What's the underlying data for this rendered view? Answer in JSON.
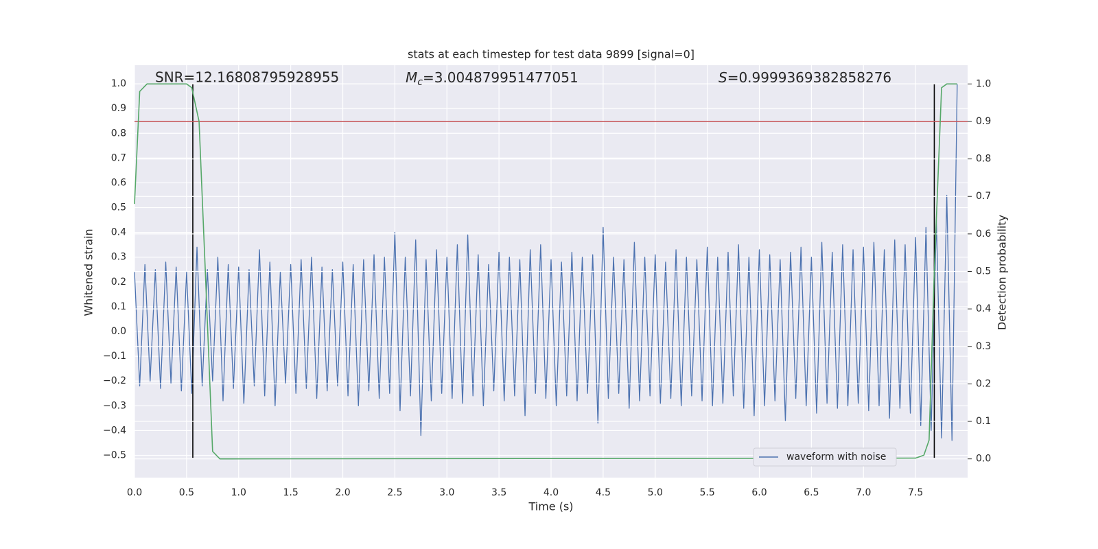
{
  "chart_data": {
    "type": "line",
    "title": "stats at each timestep for test data 9899 [signal=0]",
    "x_label": "Time (s)",
    "y_label": "Whitened strain",
    "y2_label": "Detection probability",
    "annotations": {
      "snr": "SNR=12.16808795928955",
      "mc_symbol": "M",
      "mc_subscript": "c",
      "mc_text": "=3.004879951477051",
      "s_symbol": "S",
      "s_text": "=0.9999369382858276"
    },
    "xlim": [
      0,
      8.0
    ],
    "ylim": [
      -0.59,
      1.075
    ],
    "y2lim": [
      -0.05,
      1.05
    ],
    "xticks": [
      {
        "value": 0,
        "label": "0.0"
      },
      0.5,
      {
        "value": 1,
        "label": "1.0"
      },
      1.5,
      {
        "value": 2,
        "label": "2.0"
      },
      2.5,
      {
        "value": 3,
        "label": "3.0"
      },
      3.5,
      {
        "value": 4,
        "label": "4.0"
      },
      4.5,
      {
        "value": 5,
        "label": "5.0"
      },
      5.5,
      {
        "value": 6,
        "label": "6.0"
      },
      6.5,
      {
        "value": 7,
        "label": "7.0"
      },
      7.5
    ],
    "yticks": [
      {
        "value": -0.5,
        "label": "−0.5"
      },
      {
        "value": -0.4,
        "label": "−0.4"
      },
      {
        "value": -0.3,
        "label": "−0.3"
      },
      {
        "value": -0.2,
        "label": "−0.2"
      },
      {
        "value": -0.1,
        "label": "−0.1"
      },
      {
        "value": 0,
        "label": "0.0"
      },
      0.1,
      0.2,
      0.3,
      0.4,
      0.5,
      0.6,
      0.7,
      0.8,
      0.9,
      {
        "value": 1,
        "label": "1.0"
      }
    ],
    "y2ticks": [
      {
        "value": 0,
        "label": "0.0"
      },
      0.1,
      0.2,
      0.3,
      0.4,
      0.5,
      0.6,
      0.7,
      0.8,
      0.9,
      {
        "value": 1,
        "label": "1.0"
      }
    ],
    "grid": true,
    "legend": "lower right",
    "x": [
      0,
      0.05,
      0.1,
      0.15,
      0.2,
      0.25,
      0.3,
      0.35,
      0.4,
      0.45,
      0.5,
      0.55,
      0.6,
      0.65,
      0.7,
      0.75,
      0.8,
      0.85,
      0.9,
      0.95,
      1.0,
      1.05,
      1.1,
      1.15,
      1.2,
      1.25,
      1.3,
      1.35,
      1.4,
      1.45,
      1.5,
      1.55,
      1.6,
      1.65,
      1.7,
      1.75,
      1.8,
      1.85,
      1.9,
      1.95,
      2.0,
      2.05,
      2.1,
      2.15,
      2.2,
      2.25,
      2.3,
      2.35,
      2.4,
      2.45,
      2.5,
      2.55,
      2.6,
      2.65,
      2.7,
      2.75,
      2.8,
      2.85,
      2.9,
      2.95,
      3.0,
      3.05,
      3.1,
      3.15,
      3.2,
      3.25,
      3.3,
      3.35,
      3.4,
      3.45,
      3.5,
      3.55,
      3.6,
      3.65,
      3.7,
      3.75,
      3.8,
      3.85,
      3.9,
      3.95,
      4.0,
      4.05,
      4.1,
      4.15,
      4.2,
      4.25,
      4.3,
      4.35,
      4.4,
      4.45,
      4.5,
      4.55,
      4.6,
      4.65,
      4.7,
      4.75,
      4.8,
      4.85,
      4.9,
      4.95,
      5.0,
      5.05,
      5.1,
      5.15,
      5.2,
      5.25,
      5.3,
      5.35,
      5.4,
      5.45,
      5.5,
      5.55,
      5.6,
      5.65,
      5.7,
      5.75,
      5.8,
      5.85,
      5.9,
      5.95,
      6.0,
      6.05,
      6.1,
      6.15,
      6.2,
      6.25,
      6.3,
      6.35,
      6.4,
      6.45,
      6.5,
      6.55,
      6.6,
      6.65,
      6.7,
      6.75,
      6.8,
      6.85,
      6.9,
      6.95,
      7.0,
      7.05,
      7.1,
      7.15,
      7.2,
      7.25,
      7.3,
      7.35,
      7.4,
      7.45,
      7.5,
      7.55,
      7.6,
      7.65,
      7.7,
      7.75,
      7.8,
      7.85,
      7.9
    ],
    "series": [
      {
        "name": "waveform with noise",
        "color": "#4c72b0",
        "values": [
          0.24,
          -0.22,
          0.27,
          -0.2,
          0.25,
          -0.23,
          0.28,
          -0.21,
          0.26,
          -0.24,
          0.24,
          -0.25,
          0.34,
          -0.22,
          0.25,
          -0.2,
          0.3,
          -0.28,
          0.27,
          -0.23,
          0.26,
          -0.29,
          0.25,
          -0.22,
          0.33,
          -0.26,
          0.28,
          -0.3,
          0.24,
          -0.21,
          0.27,
          -0.25,
          0.29,
          -0.23,
          0.3,
          -0.27,
          0.26,
          -0.24,
          0.25,
          -0.22,
          0.28,
          -0.26,
          0.27,
          -0.3,
          0.29,
          -0.24,
          0.31,
          -0.27,
          0.3,
          -0.25,
          0.4,
          -0.32,
          0.3,
          -0.26,
          0.37,
          -0.42,
          0.29,
          -0.28,
          0.33,
          -0.25,
          0.3,
          -0.27,
          0.35,
          -0.29,
          0.39,
          -0.26,
          0.31,
          -0.3,
          0.27,
          -0.24,
          0.32,
          -0.28,
          0.3,
          -0.26,
          0.29,
          -0.34,
          0.33,
          -0.25,
          0.35,
          -0.27,
          0.29,
          -0.3,
          0.28,
          -0.26,
          0.32,
          -0.28,
          0.3,
          -0.25,
          0.31,
          -0.37,
          0.42,
          -0.27,
          0.3,
          -0.25,
          0.29,
          -0.31,
          0.36,
          -0.28,
          0.3,
          -0.26,
          0.31,
          -0.29,
          0.28,
          -0.27,
          0.33,
          -0.3,
          0.3,
          -0.26,
          0.29,
          -0.28,
          0.34,
          -0.3,
          0.3,
          -0.29,
          0.32,
          -0.26,
          0.35,
          -0.31,
          0.3,
          -0.34,
          0.33,
          -0.3,
          0.31,
          -0.28,
          0.29,
          -0.36,
          0.32,
          -0.27,
          0.34,
          -0.3,
          0.3,
          -0.33,
          0.36,
          -0.29,
          0.32,
          -0.31,
          0.35,
          -0.3,
          0.33,
          -0.29,
          0.34,
          -0.32,
          0.36,
          -0.3,
          0.33,
          -0.35,
          0.37,
          -0.31,
          0.35,
          -0.33,
          0.38,
          -0.38,
          0.42,
          -0.4,
          0.45,
          -0.43,
          0.55,
          -0.44,
          1.0
        ]
      },
      {
        "axis": "y2",
        "color": "#55a868",
        "x": [
          0,
          0.05,
          0.12,
          0.2,
          0.3,
          0.4,
          0.5,
          0.55,
          0.62,
          0.68,
          0.75,
          0.82,
          0.9,
          7.5,
          7.58,
          7.63,
          7.68,
          7.75,
          7.8,
          7.9
        ],
        "values": [
          0.68,
          0.98,
          1.0,
          1.0,
          1.0,
          1.0,
          1.0,
          0.99,
          0.9,
          0.5,
          0.02,
          0.0,
          0.0,
          0.002,
          0.01,
          0.05,
          0.5,
          0.99,
          1.0,
          1.0
        ]
      }
    ],
    "hline": {
      "value": 0.9,
      "axis": "y2",
      "color": "#c44e52"
    },
    "vlines": {
      "x": [
        0.56,
        7.68
      ],
      "ymin": -0.51,
      "ymax": 1.0,
      "color": "#000000"
    }
  }
}
